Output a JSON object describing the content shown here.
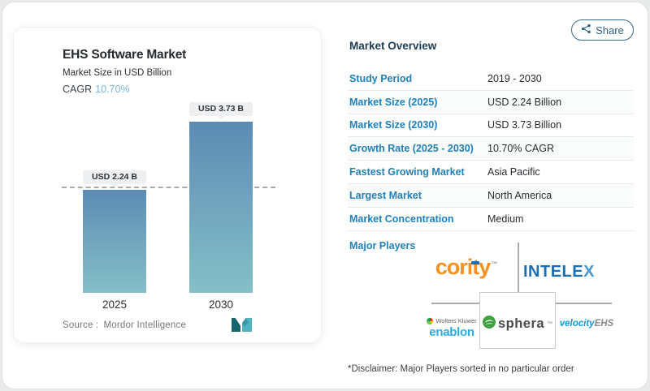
{
  "header": {
    "share_label": "Share"
  },
  "chart_card": {
    "title": "EHS Software Market",
    "subtitle": "Market Size in USD Billion",
    "cagr_label": "CAGR",
    "cagr_value": "10.70%",
    "source_label": "Source :",
    "source_value": "Mordor Intelligence"
  },
  "chart_data": {
    "type": "bar",
    "title": "EHS Software Market",
    "subtitle": "Market Size in USD Billion",
    "unit": "USD Billion",
    "categories": [
      "2025",
      "2030"
    ],
    "values": [
      2.24,
      3.73
    ],
    "value_labels": [
      "USD 2.24 B",
      "USD 3.73 B"
    ],
    "cagr_percent": "10.70%",
    "reference_line_value": 2.24,
    "ylim": [
      0,
      3.73
    ],
    "grid": "dashed horizontal reference line at 2025 value",
    "legend": "none",
    "bar_color_top": "#5b8bb4",
    "bar_color_bottom": "#85bfc8"
  },
  "overview": {
    "heading": "Market Overview",
    "rows": [
      {
        "label": "Study Period",
        "value": "2019 - 2030"
      },
      {
        "label": "Market Size (2025)",
        "value": "USD 2.24 Billion"
      },
      {
        "label": "Market Size (2030)",
        "value": "USD 3.73 Billion"
      },
      {
        "label": "Growth Rate (2025 - 2030)",
        "value": "10.70% CAGR"
      },
      {
        "label": "Fastest Growing Market",
        "value": "Asia Pacific"
      },
      {
        "label": "Largest Market",
        "value": "North America"
      },
      {
        "label": "Market Concentration",
        "value": "Medium"
      }
    ],
    "major_players_label": "Major Players",
    "players": {
      "cority_pre": "cori",
      "cority_t": "t",
      "cority_post": "y",
      "cority_tm": "™",
      "intelex_pre": "INTELE",
      "intelex_x": "X",
      "wolters_kluwer": "Wolters Kluwer",
      "enablon": "enablon",
      "sphera": "sphera",
      "sphera_tm": "™",
      "velocity": "velocity",
      "velocity_ehs": "EHS"
    },
    "disclaimer": "*Disclaimer: Major Players sorted in no particular order"
  },
  "colors": {
    "table_label_blue": "#2080b9",
    "cagr_blue": "#79b7dd",
    "heading_navy": "#1d3c52",
    "share_teal": "#2e6180",
    "cority_orange": "#f6911e",
    "cority_bar_blue": "#1f6eb5",
    "intelex_blue": "#1a70b8",
    "enablon_blue": "#29abe2",
    "sphera_green": "#3fa142",
    "velocity_blue": "#0f9ad6"
  }
}
